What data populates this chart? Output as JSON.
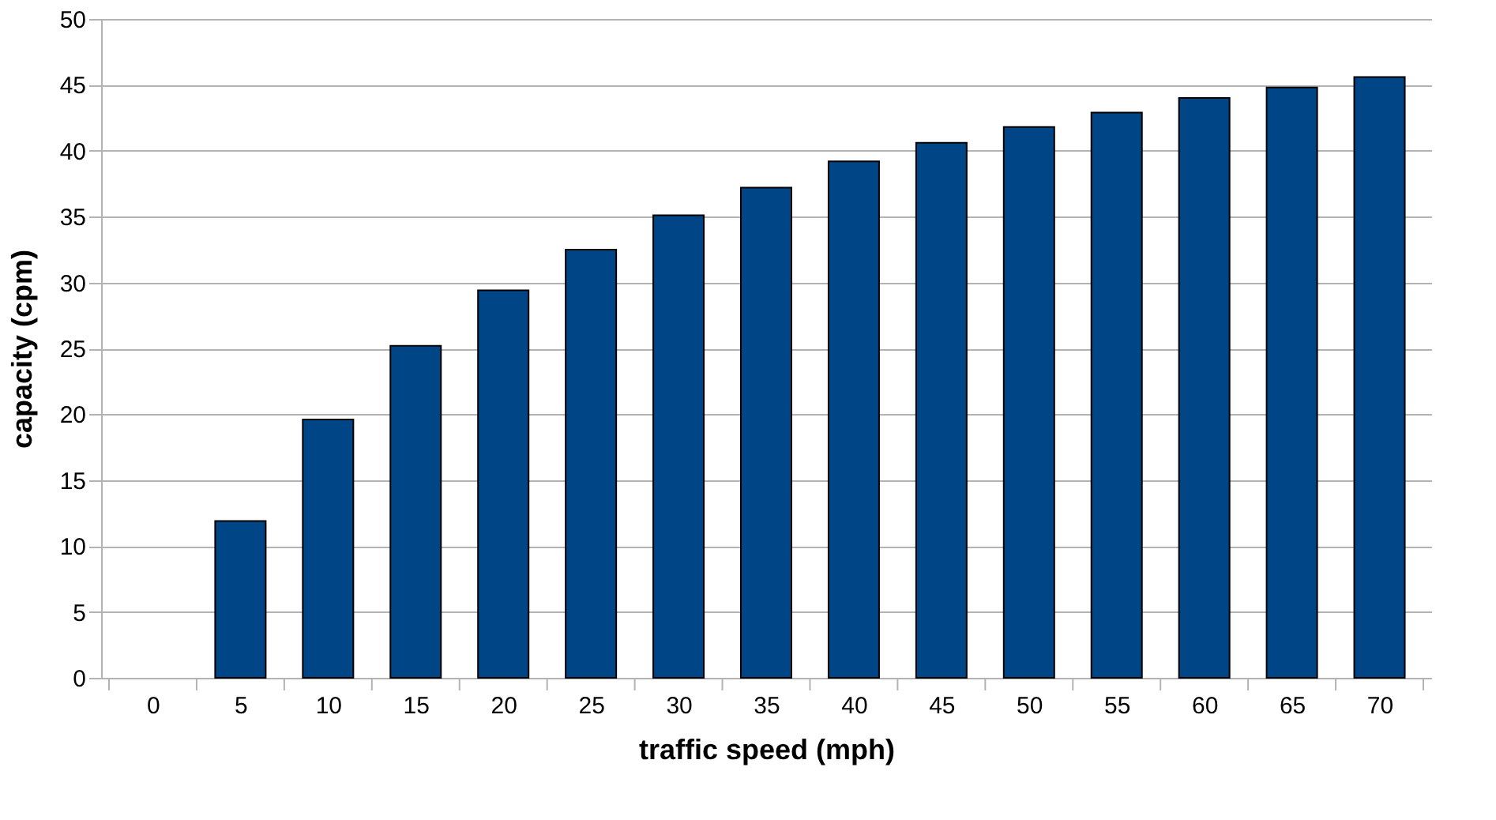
{
  "chart_data": {
    "type": "bar",
    "xlabel": "traffic speed  (mph)",
    "ylabel": "capacity (cpm)",
    "categories": [
      "0",
      "5",
      "10",
      "15",
      "20",
      "25",
      "30",
      "35",
      "40",
      "45",
      "50",
      "55",
      "60",
      "65",
      "70"
    ],
    "values": [
      0,
      11.9,
      19.6,
      25.2,
      29.4,
      32.5,
      35.1,
      37.2,
      39.2,
      40.6,
      41.8,
      42.9,
      44.0,
      44.8,
      45.6
    ],
    "color": "#004586",
    "ylim": [
      0,
      50
    ],
    "yticks": [
      0,
      5,
      10,
      15,
      20,
      25,
      30,
      35,
      40,
      45,
      50
    ],
    "grid": "y"
  }
}
